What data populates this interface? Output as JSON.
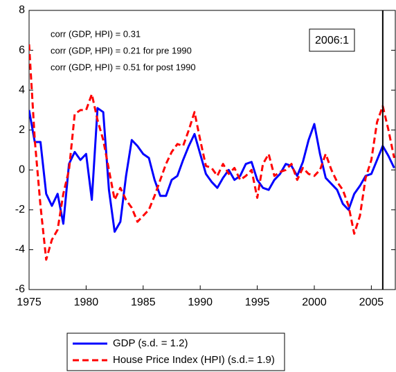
{
  "chart_data": {
    "type": "line",
    "x": [
      1975,
      1975.5,
      1976,
      1976.5,
      1977,
      1977.5,
      1978,
      1978.5,
      1979,
      1979.5,
      1980,
      1980.5,
      1981,
      1981.5,
      1982,
      1982.5,
      1983,
      1983.5,
      1984,
      1984.5,
      1985,
      1985.5,
      1986,
      1986.5,
      1987,
      1987.5,
      1988,
      1988.5,
      1989,
      1989.5,
      1990,
      1990.5,
      1991,
      1991.5,
      1992,
      1992.5,
      1993,
      1993.5,
      1994,
      1994.5,
      1995,
      1995.5,
      1996,
      1996.5,
      1997,
      1997.5,
      1998,
      1998.5,
      1999,
      1999.5,
      2000,
      2000.5,
      2001,
      2001.5,
      2002,
      2002.5,
      2003,
      2003.5,
      2004,
      2004.5,
      2005,
      2005.5,
      2006,
      2006.5,
      2007
    ],
    "series": [
      {
        "name": "GDP (s.d. = 1.2)",
        "color": "#0000ff",
        "dash": "solid",
        "values": [
          3.0,
          1.4,
          1.4,
          -1.2,
          -1.8,
          -1.2,
          -2.7,
          0.3,
          0.9,
          0.5,
          0.8,
          -1.5,
          3.1,
          2.9,
          -1.0,
          -3.1,
          -2.6,
          -0.3,
          1.5,
          1.2,
          0.8,
          0.6,
          -0.5,
          -1.3,
          -1.3,
          -0.5,
          -0.3,
          0.5,
          1.2,
          1.8,
          0.8,
          -0.2,
          -0.6,
          -0.9,
          -0.4,
          0.0,
          -0.5,
          -0.3,
          0.3,
          0.4,
          -0.5,
          -0.9,
          -1.0,
          -0.5,
          -0.2,
          0.3,
          0.2,
          -0.3,
          0.4,
          1.5,
          2.3,
          0.8,
          -0.4,
          -0.7,
          -1.0,
          -1.7,
          -2.0,
          -1.2,
          -0.8,
          -0.3,
          -0.2,
          0.5,
          1.2,
          0.7,
          0.1
        ]
      },
      {
        "name": "House Price Index (HPI) (s.d.= 1.9)",
        "color": "#ff0000",
        "dash": "dashed",
        "values": [
          6.3,
          1.5,
          -1.8,
          -4.5,
          -3.5,
          -3.0,
          -1.2,
          0.0,
          2.8,
          3.0,
          3.0,
          3.8,
          2.5,
          1.5,
          0.0,
          -1.5,
          -0.9,
          -1.5,
          -1.9,
          -2.6,
          -2.3,
          -2.0,
          -1.3,
          -0.5,
          0.3,
          0.9,
          1.3,
          1.2,
          2.0,
          2.9,
          1.5,
          0.2,
          0.1,
          -0.3,
          0.3,
          -0.2,
          0.1,
          -0.5,
          -0.3,
          0.0,
          -1.4,
          0.3,
          0.8,
          -0.3,
          -0.1,
          0.0,
          0.3,
          -0.5,
          0.1,
          -0.2,
          -0.3,
          0.0,
          0.8,
          0.0,
          -0.6,
          -1.0,
          -1.8,
          -3.2,
          -2.3,
          -0.4,
          0.5,
          2.4,
          3.2,
          2.0,
          0.6
        ]
      }
    ],
    "xlim": [
      1975,
      2007.1
    ],
    "xticks": [
      1975,
      1980,
      1985,
      1990,
      1995,
      2000,
      2005
    ],
    "ylim": [
      -6,
      8
    ],
    "yticks": [
      -6,
      -4,
      -2,
      0,
      2,
      4,
      6,
      8
    ],
    "annotations": [
      "corr (GDP, HPI) = 0.31",
      "corr (GDP, HPI) = 0.21 for pre 1990",
      "corr (GDP, HPI) = 0.51 for post 1990"
    ],
    "marker": {
      "x": 2006,
      "label": "2006:1"
    }
  }
}
